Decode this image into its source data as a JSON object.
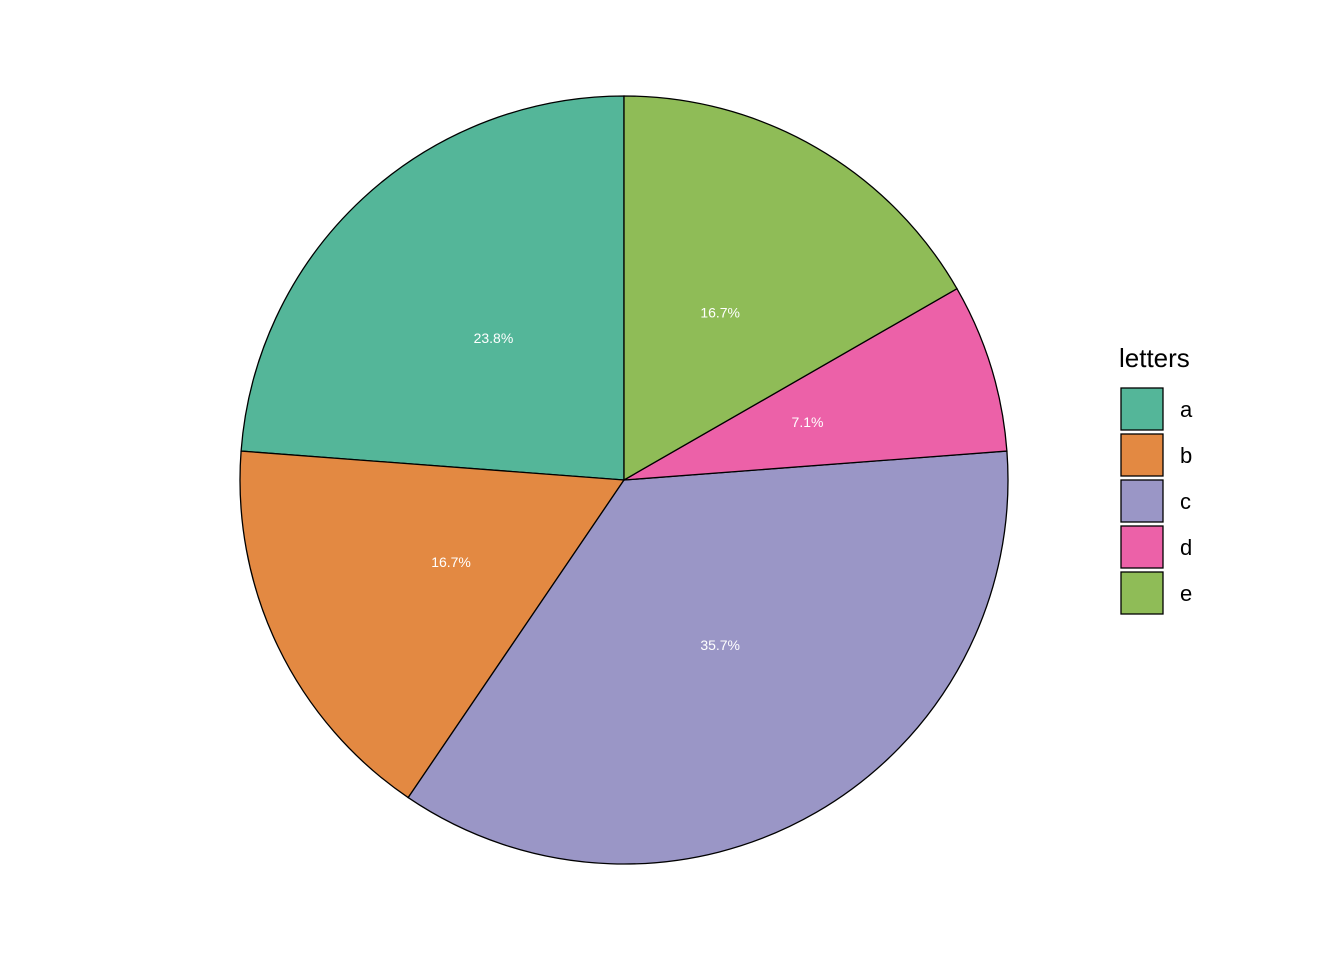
{
  "chart_data": {
    "type": "pie",
    "categories": [
      "a",
      "b",
      "c",
      "d",
      "e"
    ],
    "values": [
      23.8,
      16.7,
      35.7,
      7.1,
      16.7
    ],
    "value_labels": [
      "23.8%",
      "16.7%",
      "35.7%",
      "7.1%",
      "16.7%"
    ],
    "colors": [
      "#54b699",
      "#e38942",
      "#9a96c6",
      "#ec61a8",
      "#8fbc57"
    ],
    "legend_title": "letters",
    "legend": "right",
    "direction": "counterclockwise"
  }
}
